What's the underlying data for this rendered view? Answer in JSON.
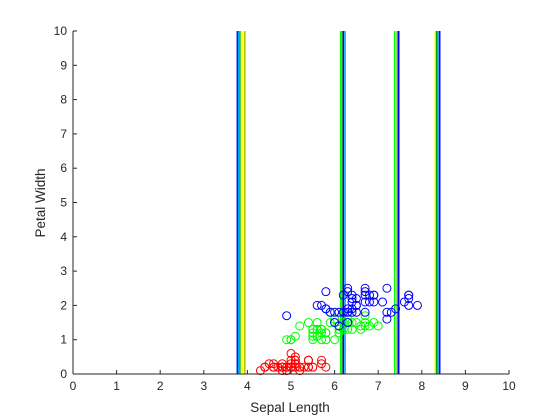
{
  "chart_data": {
    "type": "scatter",
    "title": "",
    "xlabel": "Sepal Length",
    "ylabel": "Petal Width",
    "xlim": [
      0,
      10
    ],
    "ylim": [
      0,
      10
    ],
    "xticks": [
      0,
      1,
      2,
      3,
      4,
      5,
      6,
      7,
      8,
      9,
      10
    ],
    "yticks": [
      0,
      1,
      2,
      3,
      4,
      5,
      6,
      7,
      8,
      9,
      10
    ],
    "grid": false,
    "marker": "open-circle",
    "series": [
      {
        "color": "#ff0000",
        "points": [
          [
            5.1,
            0.2
          ],
          [
            4.9,
            0.2
          ],
          [
            4.7,
            0.2
          ],
          [
            4.6,
            0.2
          ],
          [
            5.0,
            0.2
          ],
          [
            5.4,
            0.4
          ],
          [
            4.6,
            0.3
          ],
          [
            5.0,
            0.2
          ],
          [
            4.4,
            0.2
          ],
          [
            4.9,
            0.1
          ],
          [
            5.4,
            0.2
          ],
          [
            4.8,
            0.2
          ],
          [
            4.8,
            0.1
          ],
          [
            4.3,
            0.1
          ],
          [
            5.8,
            0.2
          ],
          [
            5.7,
            0.4
          ],
          [
            5.4,
            0.4
          ],
          [
            5.1,
            0.3
          ],
          [
            5.7,
            0.3
          ],
          [
            5.1,
            0.3
          ],
          [
            5.4,
            0.2
          ],
          [
            5.1,
            0.4
          ],
          [
            4.6,
            0.2
          ],
          [
            5.1,
            0.5
          ],
          [
            4.8,
            0.2
          ],
          [
            5.0,
            0.2
          ],
          [
            5.0,
            0.4
          ],
          [
            5.2,
            0.2
          ],
          [
            5.2,
            0.2
          ],
          [
            4.7,
            0.2
          ],
          [
            4.8,
            0.2
          ],
          [
            5.4,
            0.4
          ],
          [
            5.2,
            0.1
          ],
          [
            5.5,
            0.2
          ],
          [
            4.9,
            0.2
          ],
          [
            5.0,
            0.2
          ],
          [
            5.5,
            0.2
          ],
          [
            4.9,
            0.1
          ],
          [
            4.4,
            0.2
          ],
          [
            5.1,
            0.2
          ],
          [
            5.0,
            0.3
          ],
          [
            4.5,
            0.3
          ],
          [
            4.4,
            0.2
          ],
          [
            5.0,
            0.6
          ],
          [
            5.1,
            0.4
          ],
          [
            4.8,
            0.3
          ],
          [
            5.1,
            0.2
          ],
          [
            4.6,
            0.2
          ],
          [
            5.3,
            0.2
          ],
          [
            5.0,
            0.2
          ]
        ]
      },
      {
        "color": "#00ff00",
        "points": [
          [
            7.0,
            1.4
          ],
          [
            6.4,
            1.5
          ],
          [
            6.9,
            1.5
          ],
          [
            5.5,
            1.3
          ],
          [
            6.5,
            1.5
          ],
          [
            5.7,
            1.3
          ],
          [
            6.3,
            1.6
          ],
          [
            4.9,
            1.0
          ],
          [
            6.6,
            1.3
          ],
          [
            5.2,
            1.4
          ],
          [
            5.0,
            1.0
          ],
          [
            5.9,
            1.5
          ],
          [
            6.0,
            1.0
          ],
          [
            6.1,
            1.4
          ],
          [
            5.6,
            1.3
          ],
          [
            6.7,
            1.4
          ],
          [
            5.6,
            1.5
          ],
          [
            5.8,
            1.0
          ],
          [
            6.2,
            1.5
          ],
          [
            5.6,
            1.1
          ],
          [
            5.9,
            1.8
          ],
          [
            6.1,
            1.3
          ],
          [
            6.3,
            1.5
          ],
          [
            6.1,
            1.2
          ],
          [
            6.4,
            1.3
          ],
          [
            6.6,
            1.4
          ],
          [
            6.8,
            1.4
          ],
          [
            6.7,
            1.7
          ],
          [
            6.0,
            1.5
          ],
          [
            5.7,
            1.0
          ],
          [
            5.5,
            1.1
          ],
          [
            5.5,
            1.0
          ],
          [
            5.8,
            1.2
          ],
          [
            6.0,
            1.6
          ],
          [
            5.4,
            1.5
          ],
          [
            6.0,
            1.6
          ],
          [
            6.7,
            1.5
          ],
          [
            6.3,
            1.3
          ],
          [
            5.6,
            1.3
          ],
          [
            5.5,
            1.3
          ],
          [
            5.5,
            1.2
          ],
          [
            6.1,
            1.4
          ],
          [
            5.8,
            1.2
          ],
          [
            5.0,
            1.0
          ],
          [
            5.6,
            1.3
          ],
          [
            5.7,
            1.2
          ],
          [
            5.7,
            1.3
          ],
          [
            6.2,
            1.3
          ],
          [
            5.1,
            1.1
          ],
          [
            5.7,
            1.3
          ]
        ]
      },
      {
        "color": "#0000ff",
        "points": [
          [
            6.3,
            2.5
          ],
          [
            5.8,
            1.9
          ],
          [
            7.1,
            2.1
          ],
          [
            6.3,
            1.8
          ],
          [
            6.5,
            2.2
          ],
          [
            7.6,
            2.1
          ],
          [
            4.9,
            1.7
          ],
          [
            7.3,
            1.8
          ],
          [
            6.7,
            1.8
          ],
          [
            7.2,
            2.5
          ],
          [
            6.5,
            2.0
          ],
          [
            6.4,
            1.9
          ],
          [
            6.8,
            2.1
          ],
          [
            5.7,
            2.0
          ],
          [
            5.8,
            2.4
          ],
          [
            6.4,
            2.3
          ],
          [
            6.5,
            1.8
          ],
          [
            7.7,
            2.2
          ],
          [
            7.7,
            2.3
          ],
          [
            6.0,
            1.5
          ],
          [
            6.9,
            2.3
          ],
          [
            5.6,
            2.0
          ],
          [
            7.7,
            2.0
          ],
          [
            6.3,
            1.8
          ],
          [
            6.7,
            2.1
          ],
          [
            7.2,
            1.8
          ],
          [
            6.2,
            1.8
          ],
          [
            6.1,
            1.8
          ],
          [
            6.4,
            2.1
          ],
          [
            7.2,
            1.6
          ],
          [
            7.4,
            1.9
          ],
          [
            7.9,
            2.0
          ],
          [
            6.4,
            2.2
          ],
          [
            6.3,
            1.5
          ],
          [
            6.1,
            1.4
          ],
          [
            7.7,
            2.3
          ],
          [
            6.3,
            2.4
          ],
          [
            6.4,
            1.8
          ],
          [
            6.0,
            1.8
          ],
          [
            6.9,
            2.1
          ],
          [
            6.7,
            2.4
          ],
          [
            6.9,
            2.3
          ],
          [
            5.8,
            1.9
          ],
          [
            6.8,
            2.3
          ],
          [
            6.7,
            2.5
          ],
          [
            6.7,
            2.3
          ],
          [
            6.3,
            1.9
          ],
          [
            6.5,
            2.0
          ],
          [
            6.2,
            2.3
          ],
          [
            5.9,
            1.8
          ]
        ]
      }
    ],
    "vertical_lines": [
      {
        "x": 3.77,
        "color": "#0000ff"
      },
      {
        "x": 3.8,
        "color": "#00aaff"
      },
      {
        "x": 3.83,
        "color": "#22bb22"
      },
      {
        "x": 3.88,
        "color": "#ffff00"
      },
      {
        "x": 3.94,
        "color": "#aacc00"
      },
      {
        "x": 6.14,
        "color": "#00ff00"
      },
      {
        "x": 6.17,
        "color": "#88cc00"
      },
      {
        "x": 6.2,
        "color": "#0000ff"
      },
      {
        "x": 6.24,
        "color": "#00aaff"
      },
      {
        "x": 7.38,
        "color": "#00ff00"
      },
      {
        "x": 7.41,
        "color": "#ffff00"
      },
      {
        "x": 7.44,
        "color": "#00aaff"
      },
      {
        "x": 7.47,
        "color": "#0000ff"
      },
      {
        "x": 8.31,
        "color": "#ffff00"
      },
      {
        "x": 8.34,
        "color": "#00aa00"
      },
      {
        "x": 8.37,
        "color": "#00aaff"
      },
      {
        "x": 8.41,
        "color": "#0000ff"
      }
    ]
  }
}
